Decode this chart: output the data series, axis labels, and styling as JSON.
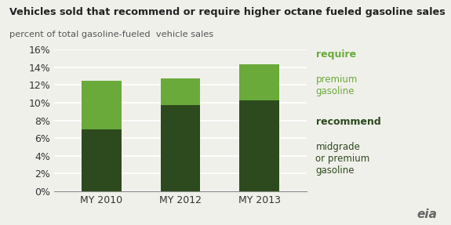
{
  "categories": [
    "MY 2010",
    "MY 2012",
    "MY 2013"
  ],
  "recommend_values": [
    7.0,
    9.7,
    10.3
  ],
  "require_values": [
    5.5,
    3.0,
    4.0
  ],
  "recommend_color": "#2d4a1e",
  "require_color": "#6aaa3a",
  "title": "Vehicles sold that recommend or require higher octane fueled gasoline sales",
  "subtitle": "percent of total gasoline-fueled  vehicle sales",
  "ylim": [
    0,
    16
  ],
  "yticks": [
    0,
    2,
    4,
    6,
    8,
    10,
    12,
    14,
    16
  ],
  "legend_require_bold": "require",
  "legend_require_sub": "premium\ngasoline",
  "legend_recommend_bold": "recommend",
  "legend_recommend_sub": "midgrade\nor premium\ngasoline",
  "background_color": "#f0f0eb",
  "require_color_legend": "#6aaa3a",
  "recommend_color_legend": "#2d4a1e",
  "bar_width": 0.5
}
